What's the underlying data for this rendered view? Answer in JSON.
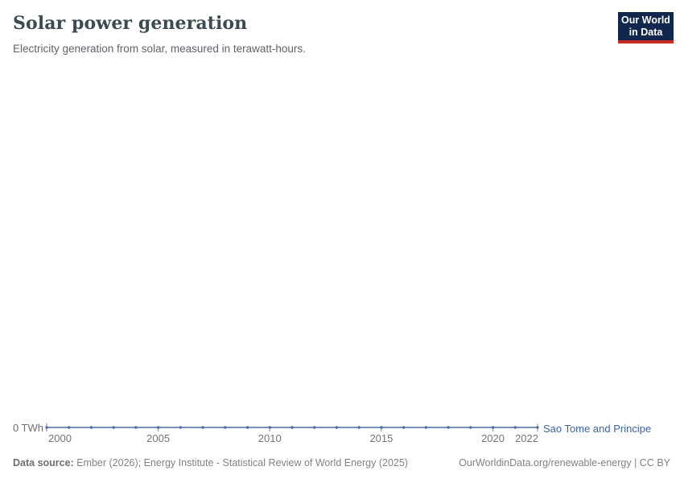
{
  "header": {
    "title": "Solar power generation",
    "subtitle": "Electricity generation from solar, measured in terawatt-hours."
  },
  "logo": {
    "line1": "Our World",
    "line2": "in Data",
    "bg_color": "#12274E",
    "accent_color": "#C52A24"
  },
  "chart_data": {
    "type": "line",
    "title": "Solar power generation",
    "unit": "terawatt-hours",
    "x": [
      2000,
      2001,
      2002,
      2003,
      2004,
      2005,
      2006,
      2007,
      2008,
      2009,
      2010,
      2011,
      2012,
      2013,
      2014,
      2015,
      2016,
      2017,
      2018,
      2019,
      2020,
      2021,
      2022
    ],
    "series": [
      {
        "name": "Sao Tome and Principe",
        "values": [
          0,
          0,
          0,
          0,
          0,
          0,
          0,
          0,
          0,
          0,
          0,
          0,
          0,
          0,
          0,
          0,
          0,
          0,
          0,
          0,
          0,
          0,
          0
        ],
        "color": "#4A6CAC",
        "label_color": "#3A63AB"
      }
    ],
    "xlim": [
      2000,
      2022
    ],
    "ylim": [
      0,
      0
    ],
    "x_ticks": [
      "2000",
      "2005",
      "2010",
      "2015",
      "2020",
      "2022"
    ],
    "y_ticks": [
      "0 TWh"
    ],
    "y_axis_label": "0 TWh",
    "grid": false,
    "legend_position": "right-of-line-end",
    "tick_color": "#8A95A5"
  },
  "footer": {
    "data_source_label": "Data source:",
    "data_source_text": " Ember (2026); Energy Institute - Statistical Review of World Energy (2025)",
    "link_text": "OurWorldinData.org/renewable-energy | CC BY"
  }
}
